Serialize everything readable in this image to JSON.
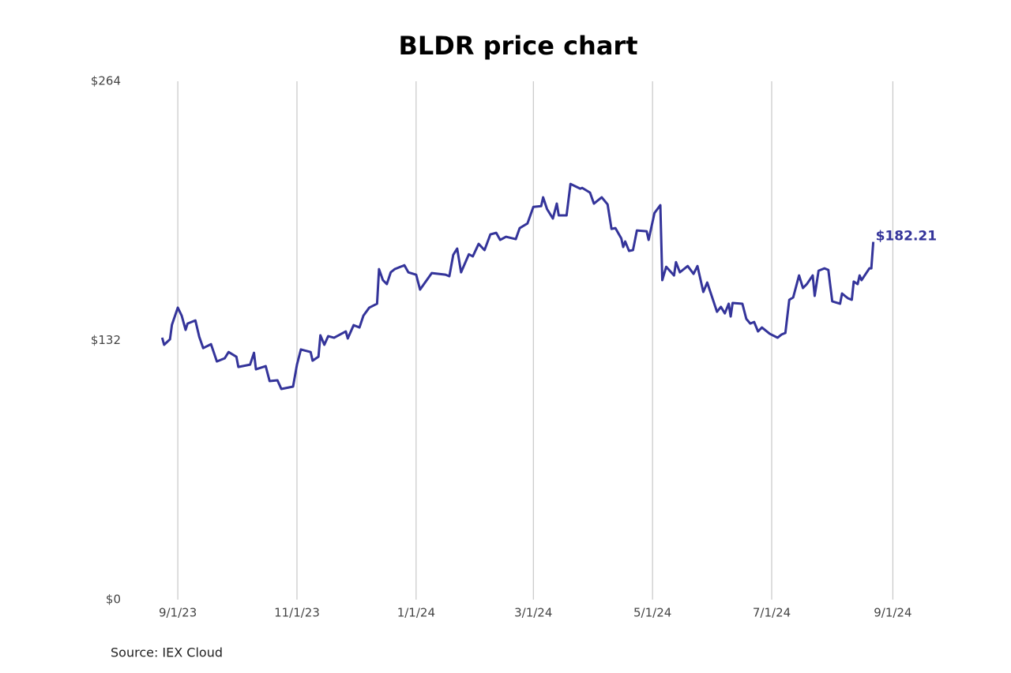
{
  "chart_data": {
    "type": "line",
    "title": "BLDR price chart",
    "source": "Source: IEX Cloud",
    "color": "#34349a",
    "grid": "x",
    "ylim": [
      0,
      264
    ],
    "yticks": [
      {
        "value": 0,
        "label": "$0"
      },
      {
        "value": 132,
        "label": "$132"
      },
      {
        "value": 264,
        "label": "$264"
      }
    ],
    "xlim": [
      "2023-08-17",
      "2024-09-15"
    ],
    "xticks": [
      {
        "value": "2023-09-01",
        "label": "9/1/23"
      },
      {
        "value": "2023-11-01",
        "label": "11/1/23"
      },
      {
        "value": "2024-01-01",
        "label": "1/1/24"
      },
      {
        "value": "2024-03-01",
        "label": "3/1/24"
      },
      {
        "value": "2024-05-01",
        "label": "5/1/24"
      },
      {
        "value": "2024-07-01",
        "label": "7/1/24"
      },
      {
        "value": "2024-09-01",
        "label": "9/1/24"
      }
    ],
    "x": [
      "2023-08-24",
      "2023-08-25",
      "2023-08-28",
      "2023-08-29",
      "2023-09-01",
      "2023-09-03",
      "2023-09-05",
      "2023-09-06",
      "2023-09-10",
      "2023-09-12",
      "2023-09-14",
      "2023-09-18",
      "2023-09-21",
      "2023-09-25",
      "2023-09-27",
      "2023-10-01",
      "2023-10-02",
      "2023-10-08",
      "2023-10-10",
      "2023-10-11",
      "2023-10-16",
      "2023-10-18",
      "2023-10-22",
      "2023-10-24",
      "2023-10-30",
      "2023-11-01",
      "2023-11-03",
      "2023-11-08",
      "2023-11-09",
      "2023-11-12",
      "2023-11-13",
      "2023-11-15",
      "2023-11-17",
      "2023-11-20",
      "2023-11-26",
      "2023-11-27",
      "2023-11-30",
      "2023-12-03",
      "2023-12-05",
      "2023-12-08",
      "2023-12-12",
      "2023-12-13",
      "2023-12-15",
      "2023-12-17",
      "2023-12-19",
      "2023-12-21",
      "2023-12-26",
      "2023-12-28",
      "2024-01-01",
      "2024-01-03",
      "2024-01-09",
      "2024-01-16",
      "2024-01-18",
      "2024-01-20",
      "2024-01-22",
      "2024-01-24",
      "2024-01-28",
      "2024-01-30",
      "2024-02-02",
      "2024-02-05",
      "2024-02-08",
      "2024-02-11",
      "2024-02-13",
      "2024-02-16",
      "2024-02-21",
      "2024-02-23",
      "2024-02-27",
      "2024-03-01",
      "2024-03-05",
      "2024-03-06",
      "2024-03-08",
      "2024-03-11",
      "2024-03-13",
      "2024-03-14",
      "2024-03-18",
      "2024-03-20",
      "2024-03-25",
      "2024-03-26",
      "2024-03-30",
      "2024-04-01",
      "2024-04-05",
      "2024-04-08",
      "2024-04-10",
      "2024-04-12",
      "2024-04-15",
      "2024-04-16",
      "2024-04-17",
      "2024-04-19",
      "2024-04-21",
      "2024-04-23",
      "2024-04-28",
      "2024-04-29",
      "2024-05-02",
      "2024-05-05",
      "2024-05-06",
      "2024-05-08",
      "2024-05-12",
      "2024-05-13",
      "2024-05-15",
      "2024-05-19",
      "2024-05-22",
      "2024-05-24",
      "2024-05-27",
      "2024-05-29",
      "2024-06-03",
      "2024-06-05",
      "2024-06-07",
      "2024-06-09",
      "2024-06-10",
      "2024-06-11",
      "2024-06-16",
      "2024-06-18",
      "2024-06-20",
      "2024-06-22",
      "2024-06-24",
      "2024-06-26",
      "2024-06-30",
      "2024-07-04",
      "2024-07-06",
      "2024-07-08",
      "2024-07-10",
      "2024-07-12",
      "2024-07-15",
      "2024-07-17",
      "2024-07-19",
      "2024-07-22",
      "2024-07-23",
      "2024-07-25",
      "2024-07-28",
      "2024-07-30",
      "2024-08-01",
      "2024-08-05",
      "2024-08-06",
      "2024-08-09",
      "2024-08-11",
      "2024-08-12",
      "2024-08-14",
      "2024-08-15",
      "2024-08-16",
      "2024-08-20",
      "2024-08-21",
      "2024-08-22"
    ],
    "values": [
      133.4,
      129.8,
      132.6,
      140.0,
      148.7,
      144.6,
      137.4,
      140.6,
      142.2,
      133.8,
      128.1,
      130.1,
      121.3,
      122.9,
      126.1,
      123.7,
      118.5,
      119.7,
      125.7,
      117.3,
      118.9,
      111.3,
      111.7,
      107.3,
      108.5,
      119.7,
      127.4,
      126.1,
      121.7,
      123.7,
      134.6,
      129.8,
      134.2,
      133.4,
      136.6,
      133.0,
      139.8,
      138.6,
      144.6,
      148.7,
      150.7,
      168.3,
      162.7,
      160.7,
      166.7,
      168.3,
      170.3,
      166.7,
      165.5,
      157.9,
      166.3,
      165.5,
      164.7,
      175.6,
      178.8,
      166.7,
      175.9,
      174.8,
      181.2,
      178.0,
      186.0,
      186.8,
      183.2,
      184.8,
      183.6,
      189.2,
      191.6,
      200.0,
      200.4,
      204.9,
      198.9,
      194.1,
      201.7,
      195.7,
      195.7,
      211.7,
      209.3,
      209.7,
      207.3,
      201.7,
      204.9,
      201.3,
      188.8,
      189.2,
      184.0,
      179.6,
      182.4,
      177.6,
      178.0,
      188.0,
      187.6,
      183.2,
      196.9,
      200.9,
      162.7,
      169.5,
      165.1,
      171.9,
      166.7,
      169.9,
      165.9,
      169.9,
      156.7,
      161.5,
      146.6,
      149.1,
      145.8,
      150.7,
      144.2,
      151.1,
      150.7,
      143.0,
      140.6,
      141.4,
      136.6,
      138.6,
      135.4,
      133.4,
      135.0,
      135.8,
      152.7,
      153.9,
      165.1,
      158.7,
      160.7,
      165.1,
      154.7,
      167.5,
      168.7,
      167.9,
      151.9,
      150.7,
      155.9,
      153.5,
      152.7,
      162.0,
      160.7,
      165.1,
      162.7,
      168.7,
      168.7,
      182.21
    ],
    "value_labels": [
      null,
      null,
      null,
      null,
      null,
      null,
      null,
      null,
      null,
      null,
      null,
      null,
      null,
      null,
      null,
      null,
      null,
      null,
      null,
      null,
      null,
      null,
      null,
      null,
      null,
      null,
      null,
      null,
      null,
      null,
      null,
      null,
      null,
      null,
      null,
      null,
      null,
      null,
      null,
      null,
      null,
      null,
      null,
      null,
      null,
      null,
      null,
      null,
      null,
      null,
      null,
      null,
      null,
      null,
      null,
      null,
      null,
      null,
      null,
      null,
      null,
      null,
      null,
      null,
      null,
      null,
      null,
      null,
      null,
      null,
      null,
      null,
      null,
      null,
      null,
      null,
      null,
      null,
      null,
      null,
      null,
      null,
      null,
      null,
      null,
      null,
      null,
      null,
      null,
      null,
      null,
      null,
      null,
      null,
      null,
      null,
      null,
      null,
      null,
      null,
      null,
      null,
      null,
      null,
      null,
      null,
      null,
      null,
      null,
      null,
      null,
      null,
      null,
      null,
      null,
      null,
      null,
      null,
      null,
      null,
      null,
      null,
      null,
      null,
      null,
      null,
      null,
      null,
      null,
      null,
      null,
      null,
      null,
      null,
      null,
      null,
      null,
      null,
      null,
      null,
      null,
      "$182.21"
    ]
  }
}
